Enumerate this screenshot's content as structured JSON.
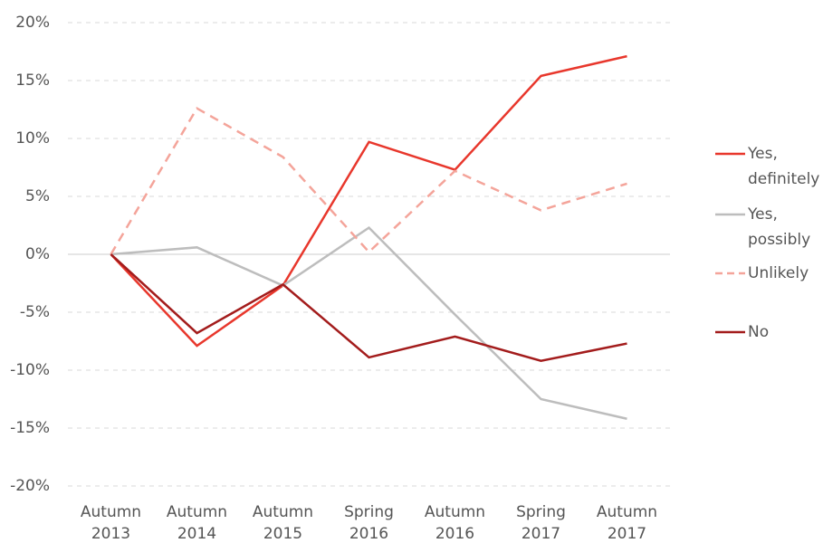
{
  "chart_data": {
    "type": "line",
    "categories": [
      "Autumn 2013",
      "Autumn 2014",
      "Autumn 2015",
      "Spring 2016",
      "Autumn 2016",
      "Spring 2017",
      "Autumn 2017"
    ],
    "series": [
      {
        "name": "Yes, definitely",
        "color": "#e8372c",
        "dashed": false,
        "values": [
          0,
          -7.9,
          -2.7,
          9.7,
          7.3,
          15.4,
          17.1
        ]
      },
      {
        "name": "Yes, possibly",
        "color": "#bdbdbd",
        "dashed": false,
        "values": [
          0,
          0.6,
          -2.7,
          2.3,
          -5.2,
          -12.5,
          -14.2
        ]
      },
      {
        "name": "Unlikely",
        "color": "#f4a49a",
        "dashed": true,
        "values": [
          0,
          12.6,
          8.4,
          0.2,
          7.2,
          3.8,
          6.1
        ]
      },
      {
        "name": "No",
        "color": "#a31c1c",
        "dashed": false,
        "values": [
          0,
          -6.8,
          -2.6,
          -8.9,
          -7.1,
          -9.2,
          -7.7
        ]
      }
    ],
    "ylim": [
      -20,
      20
    ],
    "yticks": [
      {
        "value": -20,
        "label": "-20%"
      },
      {
        "value": -15,
        "label": "-15%"
      },
      {
        "value": -10,
        "label": "-10%"
      },
      {
        "value": -5,
        "label": "-5%"
      },
      {
        "value": 0,
        "label": "0%"
      },
      {
        "value": 5,
        "label": "5%"
      },
      {
        "value": 10,
        "label": "10%"
      },
      {
        "value": 15,
        "label": "15%"
      },
      {
        "value": 20,
        "label": "20%"
      }
    ],
    "grid": true
  }
}
